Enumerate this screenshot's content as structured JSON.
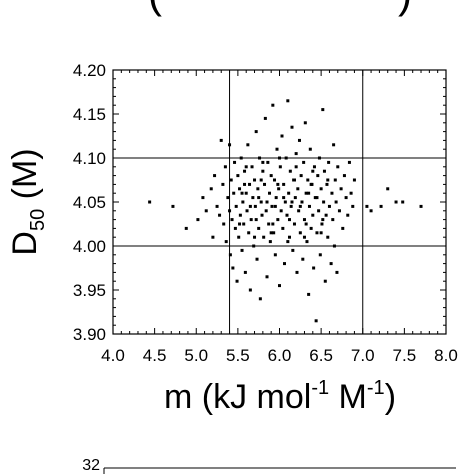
{
  "colors": {
    "axis": "#000000",
    "grid": "#000000",
    "marker": "#000000",
    "background": "#ffffff"
  },
  "clipped_top_label": {
    "text": "(",
    "right_text": ")"
  },
  "bottom_panel": {
    "top_tick_label": "32"
  },
  "chart_data": {
    "type": "scatter",
    "xlabel_parts": {
      "main": "m (kJ mol",
      "sup1": "-1",
      "mid": " M",
      "sup2": "-1",
      "end": ")"
    },
    "ylabel_parts": {
      "main": "D",
      "sub": "50",
      "end": " (M)"
    },
    "xlim": [
      4.0,
      8.0
    ],
    "ylim": [
      3.9,
      4.2
    ],
    "x_ticks": [
      4.0,
      4.5,
      5.0,
      5.5,
      6.0,
      6.5,
      7.0,
      7.5,
      8.0
    ],
    "x_tick_labels": [
      "4.0",
      "4.5",
      "5.0",
      "5.5",
      "6.0",
      "6.5",
      "7.0",
      "7.5",
      "8.0"
    ],
    "y_ticks": [
      3.9,
      3.95,
      4.0,
      4.05,
      4.1,
      4.15,
      4.2
    ],
    "y_tick_labels": [
      "3.90",
      "3.95",
      "4.00",
      "4.05",
      "4.10",
      "4.15",
      "4.20"
    ],
    "grid_x": [
      5.4,
      7.0
    ],
    "grid_y": [
      4.0,
      4.1
    ],
    "grid": "partial",
    "legend": "none",
    "points": [
      [
        4.44,
        4.05
      ],
      [
        4.72,
        4.045
      ],
      [
        4.88,
        4.02
      ],
      [
        5.02,
        4.03
      ],
      [
        5.08,
        4.055
      ],
      [
        5.12,
        4.04
      ],
      [
        5.18,
        4.065
      ],
      [
        5.2,
        4.01
      ],
      [
        5.22,
        4.08
      ],
      [
        5.25,
        4.045
      ],
      [
        5.28,
        4.035
      ],
      [
        5.3,
        4.12
      ],
      [
        5.32,
        4.07
      ],
      [
        5.33,
        4.025
      ],
      [
        5.35,
        4.09
      ],
      [
        5.36,
        4.005
      ],
      [
        5.38,
        4.055
      ],
      [
        5.4,
        4.115
      ],
      [
        5.4,
        4.04
      ],
      [
        5.41,
        3.99
      ],
      [
        5.42,
        4.075
      ],
      [
        5.43,
        4.03
      ],
      [
        5.44,
        3.975
      ],
      [
        5.45,
        4.06
      ],
      [
        5.46,
        4.095
      ],
      [
        5.47,
        4.02
      ],
      [
        5.48,
        4.045
      ],
      [
        5.49,
        3.96
      ],
      [
        5.5,
        4.08
      ],
      [
        5.51,
        4.01
      ],
      [
        5.52,
        4.065
      ],
      [
        5.53,
        4.035
      ],
      [
        5.54,
        4.1
      ],
      [
        5.55,
        3.995
      ],
      [
        5.56,
        4.05
      ],
      [
        5.57,
        4.025
      ],
      [
        5.58,
        4.085
      ],
      [
        5.59,
        3.97
      ],
      [
        5.6,
        4.06
      ],
      [
        5.61,
        4.04
      ],
      [
        5.62,
        4.115
      ],
      [
        5.63,
        4.015
      ],
      [
        5.64,
        4.07
      ],
      [
        5.65,
        3.95
      ],
      [
        5.66,
        4.03
      ],
      [
        5.67,
        4.09
      ],
      [
        5.68,
        4.055
      ],
      [
        5.69,
        4.0
      ],
      [
        5.7,
        4.075
      ],
      [
        5.71,
        4.045
      ],
      [
        5.72,
        4.13
      ],
      [
        5.73,
        3.985
      ],
      [
        5.74,
        4.065
      ],
      [
        5.75,
        4.02
      ],
      [
        5.76,
        4.1
      ],
      [
        5.77,
        3.94
      ],
      [
        5.78,
        4.05
      ],
      [
        5.79,
        4.035
      ],
      [
        5.8,
        4.085
      ],
      [
        5.81,
        4.01
      ],
      [
        5.82,
        4.07
      ],
      [
        5.83,
        4.145
      ],
      [
        5.84,
        4.04
      ],
      [
        5.85,
        3.965
      ],
      [
        5.86,
        4.095
      ],
      [
        5.87,
        4.025
      ],
      [
        5.88,
        4.06
      ],
      [
        5.89,
        4.005
      ],
      [
        5.9,
        4.08
      ],
      [
        5.91,
        4.045
      ],
      [
        5.92,
        4.16
      ],
      [
        5.93,
        4.015
      ],
      [
        5.94,
        4.075
      ],
      [
        5.95,
        3.99
      ],
      [
        5.96,
        4.055
      ],
      [
        5.97,
        4.11
      ],
      [
        5.98,
        4.03
      ],
      [
        5.99,
        4.065
      ],
      [
        6.0,
        3.955
      ],
      [
        6.01,
        4.09
      ],
      [
        6.02,
        4.04
      ],
      [
        6.03,
        4.125
      ],
      [
        6.04,
        4.02
      ],
      [
        6.05,
        4.07
      ],
      [
        6.06,
        3.98
      ],
      [
        6.07,
        4.05
      ],
      [
        6.08,
        4.1
      ],
      [
        6.09,
        4.035
      ],
      [
        6.1,
        4.165
      ],
      [
        6.11,
        4.06
      ],
      [
        6.12,
        4.01
      ],
      [
        6.13,
        4.085
      ],
      [
        6.14,
        4.045
      ],
      [
        6.15,
        4.135
      ],
      [
        6.16,
        3.995
      ],
      [
        6.17,
        4.075
      ],
      [
        6.18,
        4.025
      ],
      [
        6.19,
        4.055
      ],
      [
        6.2,
        4.105
      ],
      [
        6.21,
        3.97
      ],
      [
        6.22,
        4.065
      ],
      [
        6.23,
        4.04
      ],
      [
        6.24,
        4.12
      ],
      [
        6.25,
        4.015
      ],
      [
        6.26,
        4.08
      ],
      [
        6.27,
        4.05
      ],
      [
        6.28,
        3.985
      ],
      [
        6.29,
        4.095
      ],
      [
        6.3,
        4.03
      ],
      [
        6.31,
        4.14
      ],
      [
        6.32,
        4.06
      ],
      [
        6.33,
        4.005
      ],
      [
        6.34,
        4.075
      ],
      [
        6.35,
        3.945
      ],
      [
        6.36,
        4.045
      ],
      [
        6.37,
        4.11
      ],
      [
        6.38,
        4.02
      ],
      [
        6.39,
        4.07
      ],
      [
        6.4,
        4.035
      ],
      [
        6.41,
        3.975
      ],
      [
        6.42,
        4.09
      ],
      [
        6.43,
        4.055
      ],
      [
        6.44,
        3.915
      ],
      [
        6.45,
        4.015
      ],
      [
        6.46,
        4.08
      ],
      [
        6.47,
        4.04
      ],
      [
        6.48,
        4.1
      ],
      [
        6.49,
        3.99
      ],
      [
        6.5,
        4.065
      ],
      [
        6.51,
        4.025
      ],
      [
        6.52,
        4.155
      ],
      [
        6.53,
        4.05
      ],
      [
        6.54,
        4.085
      ],
      [
        6.55,
        3.96
      ],
      [
        6.56,
        4.035
      ],
      [
        6.57,
        4.07
      ],
      [
        6.58,
        4.01
      ],
      [
        6.59,
        4.095
      ],
      [
        6.6,
        4.045
      ],
      [
        6.62,
        3.98
      ],
      [
        6.63,
        4.06
      ],
      [
        6.64,
        4.03
      ],
      [
        6.65,
        4.115
      ],
      [
        6.66,
        4.0
      ],
      [
        6.67,
        4.075
      ],
      [
        6.68,
        4.05
      ],
      [
        6.69,
        3.97
      ],
      [
        6.7,
        4.09
      ],
      [
        6.72,
        4.04
      ],
      [
        6.74,
        4.065
      ],
      [
        6.76,
        4.02
      ],
      [
        6.78,
        4.08
      ],
      [
        6.8,
        4.055
      ],
      [
        6.82,
        4.035
      ],
      [
        6.84,
        4.095
      ],
      [
        6.86,
        4.06
      ],
      [
        6.88,
        4.045
      ],
      [
        6.9,
        4.075
      ],
      [
        7.05,
        4.045
      ],
      [
        7.1,
        4.04
      ],
      [
        7.22,
        4.045
      ],
      [
        7.3,
        4.065
      ],
      [
        7.4,
        4.05
      ],
      [
        7.48,
        4.05
      ],
      [
        7.7,
        4.045
      ],
      [
        5.55,
        4.06
      ],
      [
        5.75,
        4.055
      ],
      [
        5.95,
        4.045
      ],
      [
        6.15,
        4.05
      ],
      [
        6.35,
        4.06
      ],
      [
        5.65,
        4.045
      ],
      [
        5.85,
        4.05
      ],
      [
        6.05,
        4.055
      ],
      [
        6.25,
        4.045
      ],
      [
        6.45,
        4.055
      ],
      [
        5.6,
        4.09
      ],
      [
        5.8,
        4.095
      ],
      [
        6.0,
        4.1
      ],
      [
        6.2,
        4.09
      ],
      [
        6.4,
        4.085
      ],
      [
        5.7,
        4.01
      ],
      [
        5.9,
        4.015
      ],
      [
        6.1,
        4.005
      ],
      [
        6.3,
        4.01
      ],
      [
        6.5,
        4.015
      ],
      [
        5.52,
        4.025
      ],
      [
        5.72,
        4.03
      ],
      [
        5.92,
        4.025
      ],
      [
        6.12,
        4.03
      ],
      [
        6.32,
        4.025
      ],
      [
        6.52,
        4.03
      ],
      [
        5.58,
        4.07
      ],
      [
        5.78,
        4.075
      ],
      [
        5.98,
        4.07
      ],
      [
        6.18,
        4.075
      ],
      [
        6.38,
        4.07
      ],
      [
        6.58,
        4.075
      ]
    ]
  }
}
